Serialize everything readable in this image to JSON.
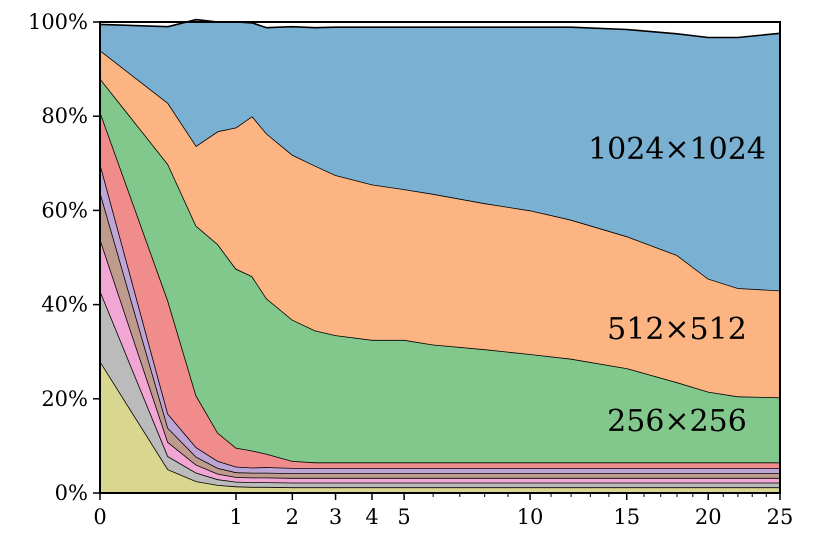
{
  "chart_data": {
    "type": "area",
    "stacked": "percent",
    "x_scale": "sqrt",
    "x_ticks": [
      0,
      1,
      2,
      3,
      4,
      5,
      10,
      15,
      20,
      25
    ],
    "y_ticks": [
      0,
      20,
      40,
      60,
      80,
      100
    ],
    "y_tick_labels": [
      "0%",
      "20%",
      "40%",
      "60%",
      "80%",
      "100%"
    ],
    "ylim": [
      0,
      100
    ],
    "xlim": [
      0,
      25
    ],
    "grid": false,
    "x": [
      0,
      0.25,
      0.5,
      0.75,
      1,
      1.25,
      1.5,
      2,
      2.5,
      3,
      4,
      5,
      6,
      8,
      10,
      12,
      15,
      18,
      20,
      22,
      25
    ],
    "series": [
      {
        "color": "#d9d78f",
        "values": [
          28,
          5,
          2.5,
          1.7,
          1.4,
          1.3,
          1.3,
          1.2,
          1.2,
          1.2,
          1.2,
          1.2,
          1.2,
          1.2,
          1.2,
          1.2,
          1.2,
          1.2,
          1.2,
          1.2,
          1.2
        ]
      },
      {
        "color": "#bbbbbb",
        "values": [
          15,
          2.8,
          1.8,
          1.2,
          1,
          1,
          1,
          1,
          1,
          1,
          1,
          1,
          1,
          1,
          1,
          1,
          1,
          1,
          1,
          1,
          1
        ]
      },
      {
        "color": "#f1a6d3",
        "values": [
          11,
          3,
          1.7,
          1.2,
          1,
          1,
          1,
          1,
          1,
          1,
          1,
          1,
          1,
          1,
          1,
          1,
          1,
          1,
          1,
          1,
          1
        ]
      },
      {
        "color": "#bf9b8e",
        "values": [
          10,
          3,
          1.7,
          1.2,
          1,
          1,
          1,
          1,
          1,
          1,
          1,
          1,
          1,
          1,
          1,
          1,
          1,
          1,
          1,
          1,
          1
        ]
      },
      {
        "color": "#bea5d5",
        "values": [
          6,
          3,
          2,
          1.5,
          1.2,
          1.1,
          1.2,
          1.1,
          1.1,
          1.1,
          1.1,
          1.1,
          1.1,
          1.1,
          1.1,
          1.1,
          1.1,
          1.1,
          1.1,
          1.1,
          1.1
        ]
      },
      {
        "color": "#f08c8c",
        "values": [
          11,
          24,
          11,
          6,
          4,
          3.6,
          2.8,
          1.5,
          1.2,
          1.2,
          1.2,
          1.2,
          1.2,
          1.2,
          1.2,
          1.2,
          1.2,
          1.2,
          1.2,
          1.2,
          1.2
        ]
      },
      {
        "color": "#82c88c",
        "values": [
          7,
          29,
          36,
          40,
          38,
          37,
          33,
          30,
          28,
          27,
          26,
          26,
          25,
          24,
          23,
          22,
          20,
          17,
          15,
          14,
          13.8
        ]
      },
      {
        "color": "#fbb482",
        "values": [
          6,
          13,
          17,
          24,
          30,
          34,
          35,
          35,
          35,
          34,
          33,
          32,
          32,
          31,
          30.5,
          29.5,
          28,
          27,
          24,
          23,
          22.7
        ]
      },
      {
        "color": "#7ab1d2",
        "values": [
          5.5,
          16.2,
          26.8,
          23.2,
          22.4,
          19.8,
          22.5,
          27.2,
          29.3,
          31.4,
          33.4,
          34.4,
          35.4,
          37.4,
          38.9,
          40.9,
          43.9,
          47.0,
          51.2,
          53.2,
          54.6
        ]
      }
    ],
    "annotations": [
      "1024×1024",
      "512×512",
      "256×256"
    ]
  }
}
